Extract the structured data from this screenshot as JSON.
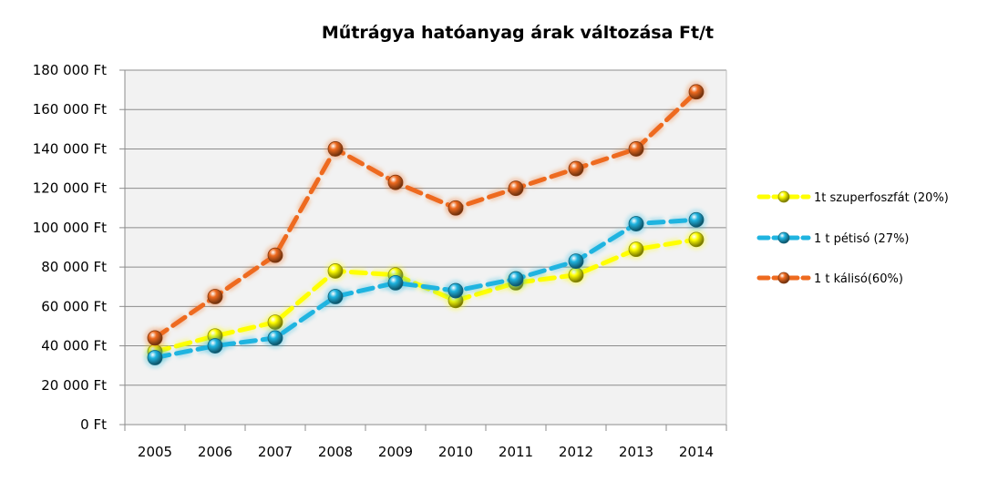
{
  "chart_data": {
    "type": "line",
    "title": "Műtrágya hatóanyag árak változása Ft/t",
    "categories": [
      "2005",
      "2006",
      "2007",
      "2008",
      "2009",
      "2010",
      "2011",
      "2012",
      "2013",
      "2014"
    ],
    "ylim": [
      0,
      180000
    ],
    "y_ticks": [
      0,
      20000,
      40000,
      60000,
      80000,
      100000,
      120000,
      140000,
      160000,
      180000
    ],
    "y_tick_labels": [
      "0 Ft",
      "20 000 Ft",
      "40 000 Ft",
      "60 000 Ft",
      "80 000 Ft",
      "100 000 Ft",
      "120 000 Ft",
      "140 000 Ft",
      "160 000 Ft",
      "180 000 Ft"
    ],
    "grid": true,
    "plot_background": "#f2f2f2",
    "legend_position": "right",
    "series": [
      {
        "name": "1t szuperfoszfát (20%)",
        "color": "#ffff00",
        "values": [
          37000,
          45000,
          52000,
          78000,
          76000,
          63000,
          72000,
          76000,
          89000,
          94000
        ]
      },
      {
        "name": "1 t pétisó (27%)",
        "color": "#1fb4e0",
        "values": [
          34000,
          40000,
          44000,
          65000,
          72000,
          68000,
          74000,
          83000,
          102000,
          104000
        ]
      },
      {
        "name": "1 t kálisó(60%)",
        "color": "#ee6a1f",
        "values": [
          44000,
          65000,
          86000,
          140000,
          123000,
          110000,
          120000,
          130000,
          140000,
          169000
        ]
      }
    ]
  }
}
